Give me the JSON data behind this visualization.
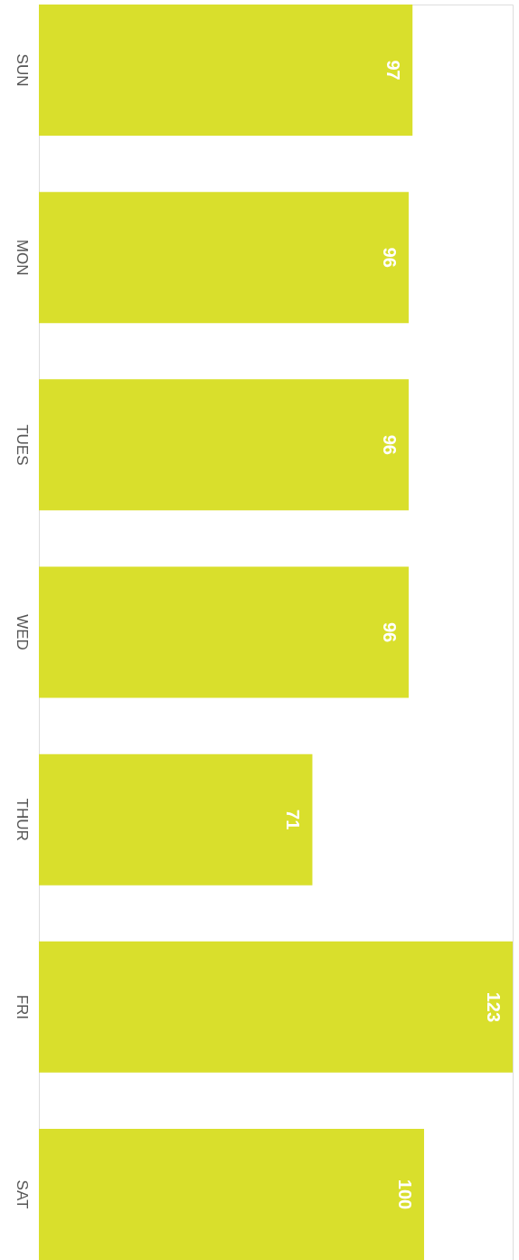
{
  "chart_data": {
    "type": "bar",
    "orientation": "horizontal",
    "categories": [
      "SUN",
      "MON",
      "TUES",
      "WED",
      "THUR",
      "FRI",
      "SAT"
    ],
    "values": [
      97,
      96,
      96,
      96,
      71,
      123,
      100
    ],
    "color": "#d9df2c",
    "data_labels": true
  }
}
